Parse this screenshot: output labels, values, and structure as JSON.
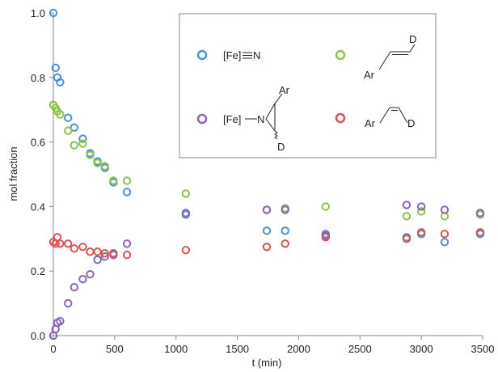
{
  "chart_data": {
    "type": "scatter",
    "title": "",
    "xlabel": "t (min)",
    "ylabel": "mol fraction",
    "xlim": [
      0,
      3500
    ],
    "ylim": [
      0,
      1.0
    ],
    "x_ticks": [
      0,
      500,
      1000,
      1500,
      2000,
      2500,
      3000,
      3500
    ],
    "y_ticks": [
      0.0,
      0.2,
      0.4,
      0.6,
      0.8,
      1.0
    ],
    "x_tick_labels": [
      "0",
      "500",
      "1000",
      "1500",
      "2000",
      "2500",
      "3000",
      "3500"
    ],
    "y_tick_labels": [
      "0.0",
      "0.2",
      "0.4",
      "0.6",
      "0.8",
      "1.0"
    ],
    "grid": false,
    "legend_position": "top-right",
    "legend_labels": {
      "nitride_fe": "[Fe]",
      "nitride_n": "N",
      "aziridine_fe": "[Fe]",
      "aziridine_n": "N",
      "ar": "Ar",
      "d": "D"
    },
    "series": [
      {
        "key": "nitride",
        "color": "#4f8fd6",
        "points": [
          [
            0,
            1.0
          ],
          [
            18,
            0.83
          ],
          [
            33,
            0.8
          ],
          [
            55,
            0.785
          ],
          [
            120,
            0.675
          ],
          [
            170,
            0.645
          ],
          [
            240,
            0.61
          ],
          [
            300,
            0.565
          ],
          [
            360,
            0.54
          ],
          [
            420,
            0.52
          ],
          [
            490,
            0.475
          ],
          [
            600,
            0.445
          ],
          [
            1080,
            0.375
          ],
          [
            1740,
            0.325
          ],
          [
            1890,
            0.325
          ],
          [
            2220,
            0.315
          ],
          [
            2880,
            0.305
          ],
          [
            3000,
            0.315
          ],
          [
            3190,
            0.29
          ],
          [
            3480,
            0.315
          ]
        ]
      },
      {
        "key": "trans_styrene",
        "color": "#8bc34a",
        "points": [
          [
            0,
            0.715
          ],
          [
            18,
            0.705
          ],
          [
            33,
            0.695
          ],
          [
            55,
            0.685
          ],
          [
            120,
            0.635
          ],
          [
            170,
            0.59
          ],
          [
            240,
            0.595
          ],
          [
            300,
            0.56
          ],
          [
            360,
            0.535
          ],
          [
            420,
            0.525
          ],
          [
            490,
            0.48
          ],
          [
            600,
            0.48
          ],
          [
            1080,
            0.44
          ],
          [
            1740,
            0.39
          ],
          [
            1890,
            0.395
          ],
          [
            2220,
            0.4
          ],
          [
            2880,
            0.37
          ],
          [
            3000,
            0.385
          ],
          [
            3190,
            0.37
          ],
          [
            3480,
            0.375
          ]
        ]
      },
      {
        "key": "aziridine",
        "color": "#8a63b8",
        "points": [
          [
            0,
            0.0
          ],
          [
            18,
            0.02
          ],
          [
            33,
            0.04
          ],
          [
            55,
            0.045
          ],
          [
            120,
            0.1
          ],
          [
            170,
            0.15
          ],
          [
            240,
            0.175
          ],
          [
            300,
            0.19
          ],
          [
            360,
            0.235
          ],
          [
            420,
            0.245
          ],
          [
            490,
            0.255
          ],
          [
            600,
            0.285
          ],
          [
            1080,
            0.38
          ],
          [
            1740,
            0.39
          ],
          [
            1890,
            0.39
          ],
          [
            2220,
            0.31
          ],
          [
            2880,
            0.405
          ],
          [
            3000,
            0.4
          ],
          [
            3190,
            0.39
          ],
          [
            3480,
            0.38
          ]
        ]
      },
      {
        "key": "cis_styrene",
        "color": "#d9534f",
        "points": [
          [
            0,
            0.29
          ],
          [
            18,
            0.285
          ],
          [
            33,
            0.305
          ],
          [
            55,
            0.285
          ],
          [
            120,
            0.285
          ],
          [
            170,
            0.27
          ],
          [
            240,
            0.275
          ],
          [
            300,
            0.26
          ],
          [
            360,
            0.26
          ],
          [
            420,
            0.255
          ],
          [
            490,
            0.25
          ],
          [
            600,
            0.25
          ],
          [
            1080,
            0.265
          ],
          [
            1740,
            0.275
          ],
          [
            1890,
            0.285
          ],
          [
            2220,
            0.305
          ],
          [
            2880,
            0.3
          ],
          [
            3000,
            0.32
          ],
          [
            3190,
            0.315
          ],
          [
            3480,
            0.32
          ]
        ]
      }
    ]
  }
}
